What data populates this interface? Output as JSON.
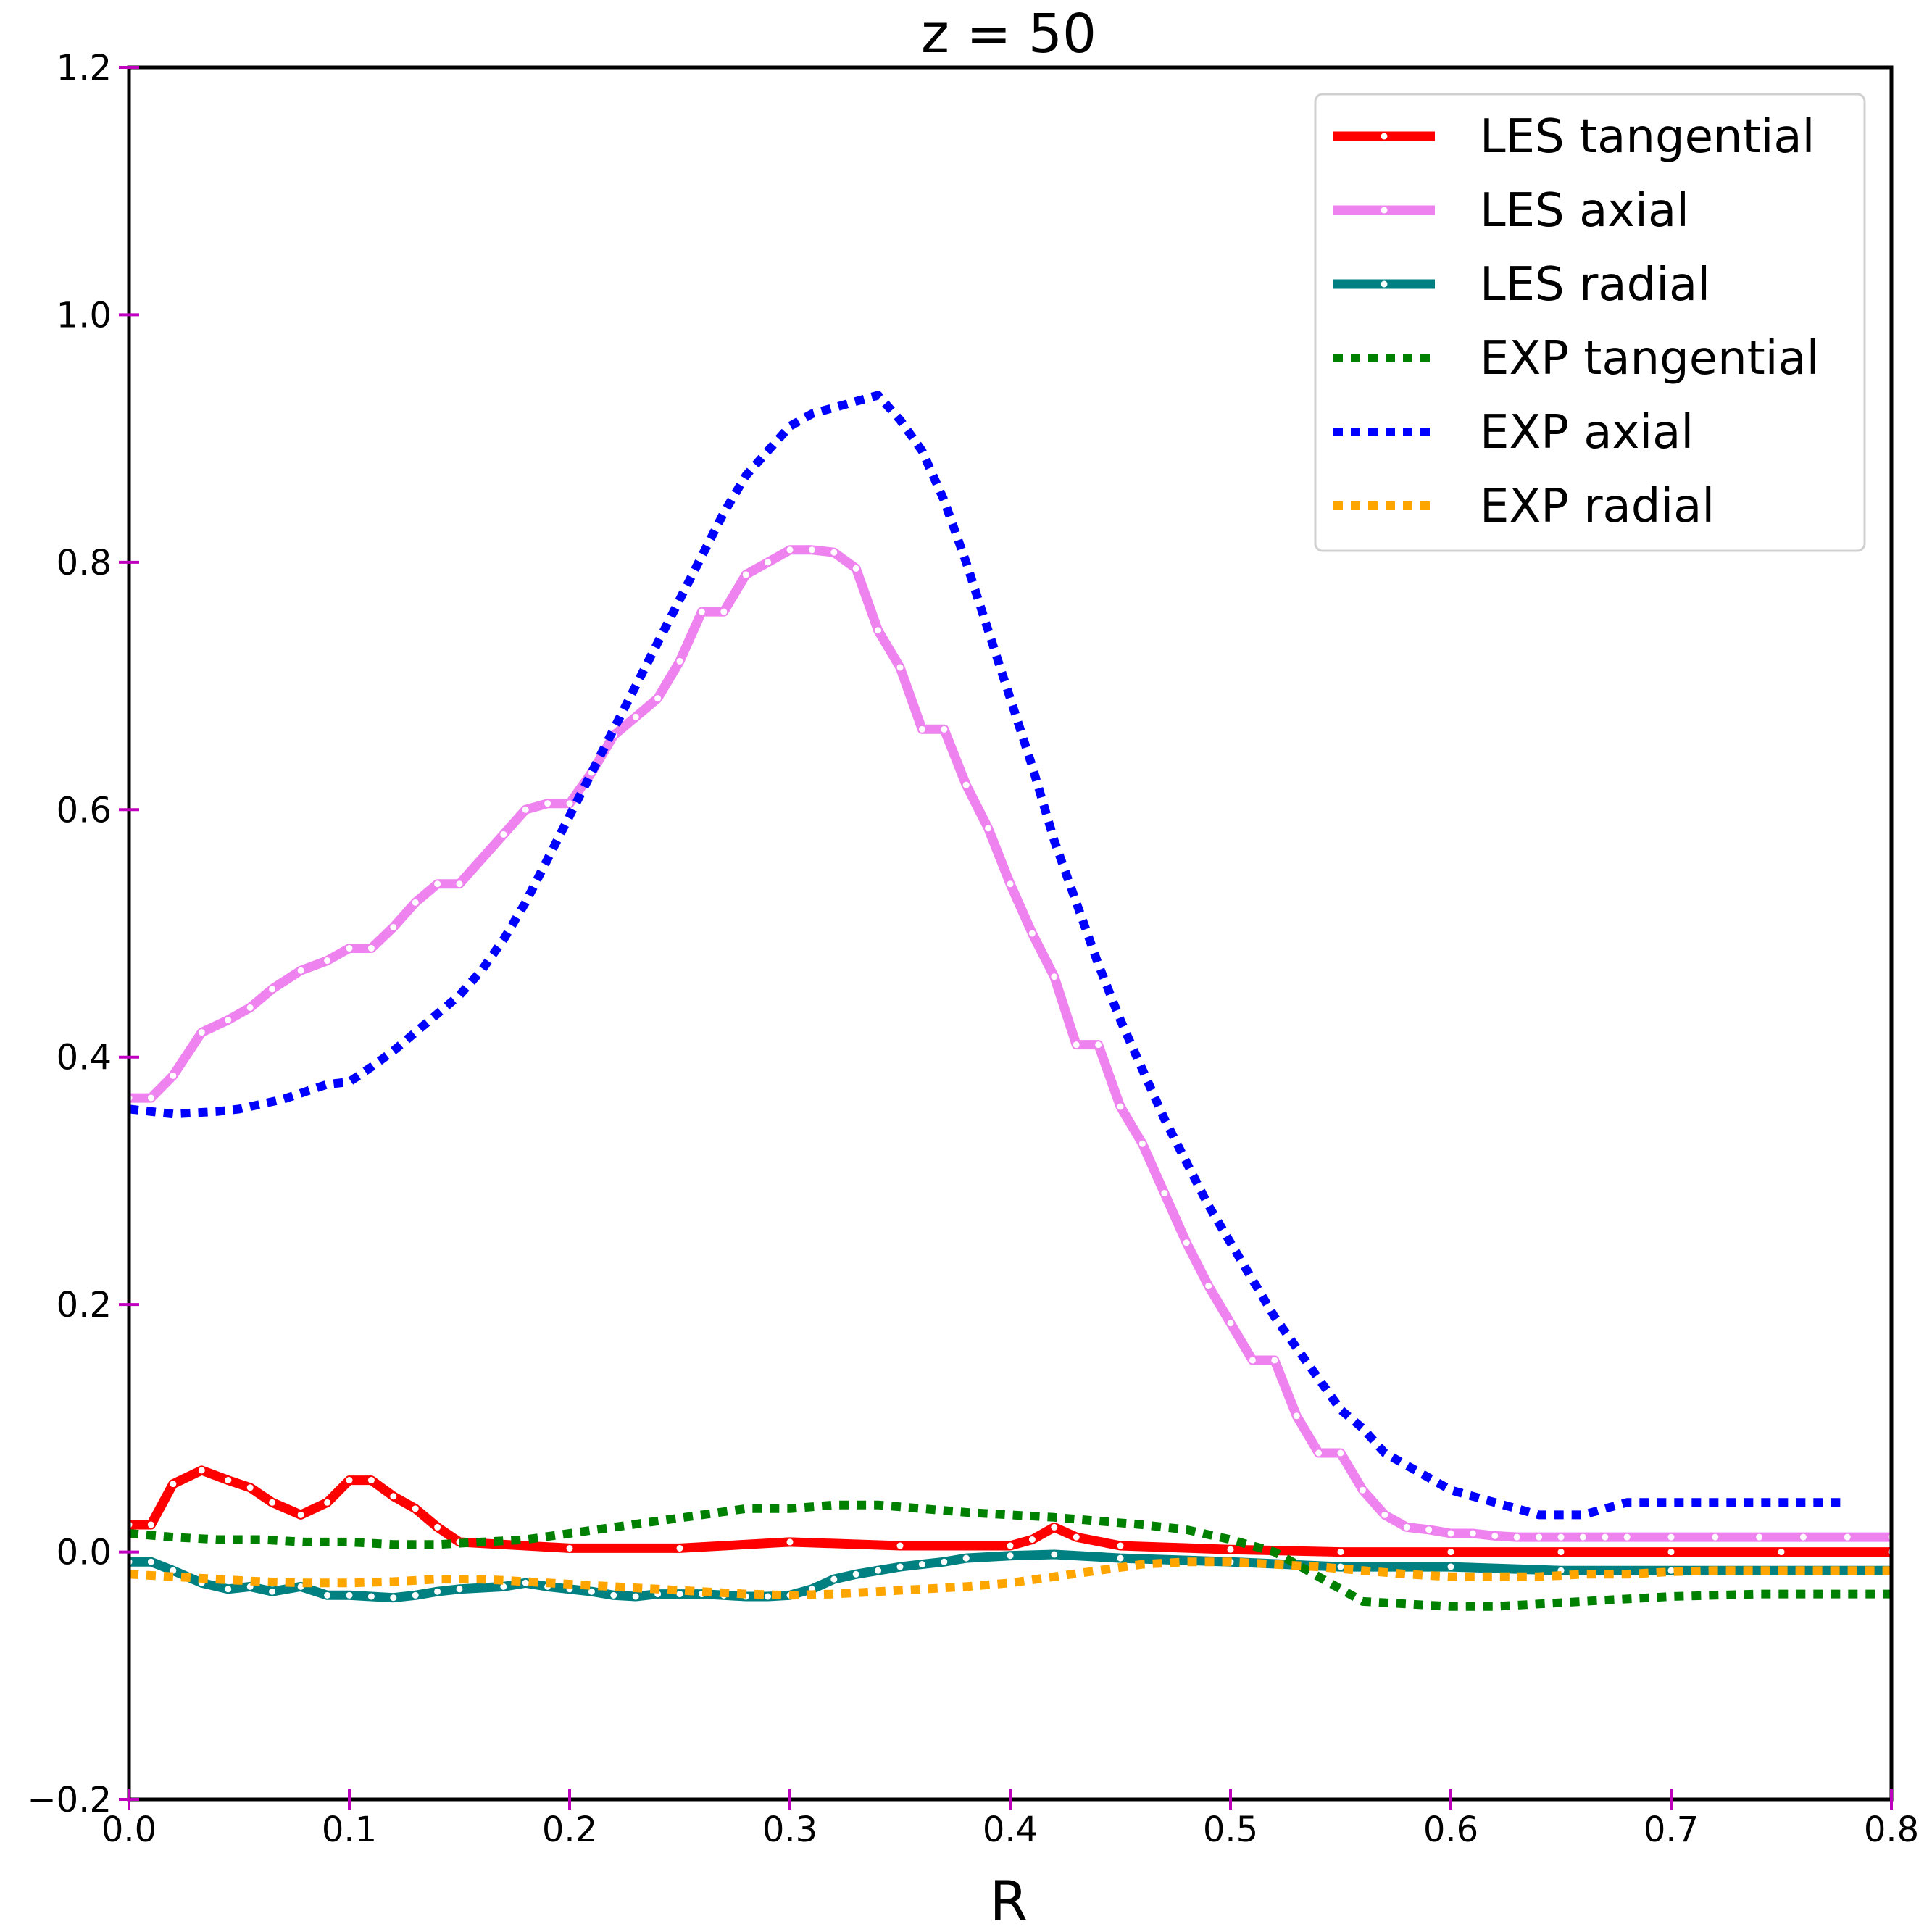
{
  "chart_data": {
    "type": "line",
    "title": "z = 50",
    "xlabel": "R",
    "ylabel": "",
    "xlim": [
      0.0,
      0.8
    ],
    "ylim": [
      -0.2,
      1.2
    ],
    "xticks": [
      0.0,
      0.1,
      0.2,
      0.3,
      0.4,
      0.5,
      0.6,
      0.7,
      0.8
    ],
    "yticks": [
      -0.2,
      0.0,
      0.2,
      0.4,
      0.6,
      0.8,
      1.0,
      1.2
    ],
    "xtick_labels": [
      "0.0",
      "0.1",
      "0.2",
      "0.3",
      "0.4",
      "0.5",
      "0.6",
      "0.7",
      "0.8"
    ],
    "ytick_labels": [
      "−0.2",
      "0.0",
      "0.2",
      "0.4",
      "0.6",
      "0.8",
      "1.0",
      "1.2"
    ],
    "grid": false,
    "legend_position": "top-right",
    "tick_color": "#bf00bf",
    "series": [
      {
        "name": "LES tangential",
        "color": "#ff0000",
        "style": "solid",
        "markers": true,
        "x": [
          0.0,
          0.01,
          0.02,
          0.033,
          0.045,
          0.055,
          0.065,
          0.078,
          0.09,
          0.1,
          0.11,
          0.12,
          0.13,
          0.14,
          0.15,
          0.2,
          0.25,
          0.3,
          0.35,
          0.4,
          0.41,
          0.42,
          0.43,
          0.45,
          0.5,
          0.55,
          0.6,
          0.65,
          0.7,
          0.75,
          0.8
        ],
        "y": [
          0.022,
          0.022,
          0.055,
          0.066,
          0.058,
          0.052,
          0.04,
          0.03,
          0.04,
          0.058,
          0.058,
          0.045,
          0.035,
          0.02,
          0.008,
          0.003,
          0.003,
          0.008,
          0.005,
          0.005,
          0.01,
          0.02,
          0.012,
          0.005,
          0.002,
          0.0,
          0.0,
          0.0,
          0.0,
          0.0,
          0.0
        ]
      },
      {
        "name": "LES axial",
        "color": "#ee82ee",
        "style": "solid",
        "markers": true,
        "x": [
          0.0,
          0.01,
          0.02,
          0.033,
          0.045,
          0.055,
          0.065,
          0.078,
          0.09,
          0.1,
          0.11,
          0.12,
          0.13,
          0.14,
          0.15,
          0.17,
          0.18,
          0.19,
          0.2,
          0.21,
          0.22,
          0.23,
          0.24,
          0.25,
          0.26,
          0.27,
          0.28,
          0.29,
          0.3,
          0.31,
          0.32,
          0.33,
          0.34,
          0.35,
          0.36,
          0.37,
          0.38,
          0.39,
          0.4,
          0.41,
          0.42,
          0.43,
          0.44,
          0.45,
          0.46,
          0.47,
          0.48,
          0.49,
          0.5,
          0.51,
          0.52,
          0.53,
          0.54,
          0.55,
          0.56,
          0.57,
          0.58,
          0.59,
          0.6,
          0.61,
          0.62,
          0.63,
          0.64,
          0.65,
          0.66,
          0.67,
          0.68,
          0.7,
          0.72,
          0.74,
          0.76,
          0.78,
          0.8
        ],
        "y": [
          0.367,
          0.367,
          0.385,
          0.42,
          0.43,
          0.44,
          0.455,
          0.47,
          0.478,
          0.488,
          0.488,
          0.505,
          0.525,
          0.54,
          0.54,
          0.58,
          0.6,
          0.605,
          0.605,
          0.63,
          0.66,
          0.675,
          0.69,
          0.72,
          0.76,
          0.76,
          0.79,
          0.8,
          0.81,
          0.81,
          0.808,
          0.795,
          0.745,
          0.715,
          0.665,
          0.665,
          0.62,
          0.585,
          0.54,
          0.5,
          0.465,
          0.41,
          0.41,
          0.36,
          0.33,
          0.29,
          0.25,
          0.215,
          0.185,
          0.155,
          0.155,
          0.11,
          0.08,
          0.08,
          0.05,
          0.03,
          0.02,
          0.018,
          0.015,
          0.015,
          0.013,
          0.012,
          0.012,
          0.012,
          0.012,
          0.012,
          0.012,
          0.012,
          0.012,
          0.012,
          0.012,
          0.012,
          0.012
        ]
      },
      {
        "name": "LES radial",
        "color": "#008080",
        "style": "solid",
        "markers": true,
        "x": [
          0.0,
          0.01,
          0.02,
          0.033,
          0.045,
          0.055,
          0.065,
          0.078,
          0.09,
          0.1,
          0.11,
          0.12,
          0.13,
          0.14,
          0.15,
          0.17,
          0.18,
          0.19,
          0.2,
          0.21,
          0.22,
          0.23,
          0.24,
          0.25,
          0.26,
          0.27,
          0.28,
          0.29,
          0.3,
          0.31,
          0.32,
          0.33,
          0.34,
          0.35,
          0.36,
          0.37,
          0.38,
          0.4,
          0.42,
          0.45,
          0.5,
          0.55,
          0.6,
          0.65,
          0.7,
          0.75,
          0.8
        ],
        "y": [
          -0.008,
          -0.008,
          -0.015,
          -0.025,
          -0.03,
          -0.028,
          -0.032,
          -0.028,
          -0.035,
          -0.035,
          -0.036,
          -0.037,
          -0.035,
          -0.032,
          -0.03,
          -0.028,
          -0.025,
          -0.028,
          -0.03,
          -0.032,
          -0.035,
          -0.036,
          -0.034,
          -0.034,
          -0.034,
          -0.035,
          -0.036,
          -0.036,
          -0.035,
          -0.03,
          -0.022,
          -0.018,
          -0.015,
          -0.012,
          -0.01,
          -0.008,
          -0.005,
          -0.003,
          -0.002,
          -0.005,
          -0.008,
          -0.012,
          -0.012,
          -0.015,
          -0.015,
          -0.015,
          -0.015
        ]
      },
      {
        "name": "EXP tangential",
        "color": "#008000",
        "style": "dotted",
        "markers": false,
        "x": [
          0.0,
          0.02,
          0.04,
          0.06,
          0.08,
          0.1,
          0.12,
          0.14,
          0.16,
          0.18,
          0.2,
          0.22,
          0.24,
          0.26,
          0.28,
          0.3,
          0.32,
          0.34,
          0.36,
          0.38,
          0.4,
          0.42,
          0.44,
          0.46,
          0.48,
          0.5,
          0.52,
          0.54,
          0.56,
          0.58,
          0.6,
          0.62,
          0.64,
          0.66,
          0.68,
          0.7,
          0.72,
          0.74,
          0.76,
          0.78,
          0.8
        ],
        "y": [
          0.015,
          0.012,
          0.01,
          0.01,
          0.008,
          0.008,
          0.006,
          0.006,
          0.008,
          0.01,
          0.015,
          0.02,
          0.025,
          0.03,
          0.035,
          0.035,
          0.038,
          0.038,
          0.035,
          0.032,
          0.03,
          0.028,
          0.025,
          0.022,
          0.018,
          0.01,
          0.0,
          -0.02,
          -0.04,
          -0.042,
          -0.044,
          -0.044,
          -0.042,
          -0.04,
          -0.038,
          -0.036,
          -0.035,
          -0.034,
          -0.034,
          -0.034,
          -0.034
        ]
      },
      {
        "name": "EXP axial",
        "color": "#0000ff",
        "style": "dotted",
        "markers": false,
        "x": [
          0.0,
          0.01,
          0.02,
          0.03,
          0.04,
          0.05,
          0.06,
          0.07,
          0.08,
          0.09,
          0.1,
          0.11,
          0.12,
          0.13,
          0.14,
          0.15,
          0.16,
          0.17,
          0.18,
          0.19,
          0.2,
          0.21,
          0.22,
          0.23,
          0.24,
          0.25,
          0.26,
          0.27,
          0.28,
          0.29,
          0.3,
          0.31,
          0.32,
          0.33,
          0.34,
          0.35,
          0.36,
          0.37,
          0.38,
          0.39,
          0.4,
          0.41,
          0.42,
          0.43,
          0.44,
          0.45,
          0.46,
          0.47,
          0.48,
          0.49,
          0.5,
          0.51,
          0.52,
          0.53,
          0.54,
          0.55,
          0.56,
          0.57,
          0.58,
          0.59,
          0.6,
          0.61,
          0.62,
          0.63,
          0.64,
          0.65,
          0.66,
          0.67,
          0.68,
          0.7,
          0.72,
          0.74,
          0.76,
          0.78
        ],
        "y": [
          0.358,
          0.356,
          0.354,
          0.355,
          0.356,
          0.358,
          0.362,
          0.366,
          0.372,
          0.378,
          0.38,
          0.392,
          0.405,
          0.42,
          0.435,
          0.45,
          0.47,
          0.495,
          0.525,
          0.56,
          0.595,
          0.63,
          0.665,
          0.7,
          0.735,
          0.77,
          0.805,
          0.84,
          0.87,
          0.89,
          0.91,
          0.92,
          0.925,
          0.93,
          0.935,
          0.915,
          0.89,
          0.85,
          0.8,
          0.745,
          0.69,
          0.635,
          0.575,
          0.525,
          0.475,
          0.43,
          0.39,
          0.35,
          0.315,
          0.28,
          0.25,
          0.22,
          0.19,
          0.165,
          0.14,
          0.115,
          0.1,
          0.08,
          0.07,
          0.06,
          0.05,
          0.045,
          0.04,
          0.035,
          0.03,
          0.03,
          0.03,
          0.035,
          0.04,
          0.04,
          0.04,
          0.04,
          0.04,
          0.04
        ]
      },
      {
        "name": "EXP radial",
        "color": "#ffa500",
        "style": "dotted",
        "markers": false,
        "x": [
          0.0,
          0.02,
          0.04,
          0.06,
          0.08,
          0.1,
          0.12,
          0.14,
          0.16,
          0.18,
          0.2,
          0.22,
          0.24,
          0.26,
          0.28,
          0.3,
          0.32,
          0.34,
          0.36,
          0.38,
          0.4,
          0.42,
          0.44,
          0.46,
          0.48,
          0.5,
          0.52,
          0.54,
          0.56,
          0.58,
          0.6,
          0.62,
          0.64,
          0.66,
          0.68,
          0.7,
          0.72,
          0.74,
          0.76,
          0.78,
          0.8
        ],
        "y": [
          -0.018,
          -0.02,
          -0.022,
          -0.024,
          -0.025,
          -0.025,
          -0.024,
          -0.022,
          -0.022,
          -0.024,
          -0.026,
          -0.028,
          -0.03,
          -0.032,
          -0.034,
          -0.035,
          -0.034,
          -0.032,
          -0.03,
          -0.028,
          -0.025,
          -0.02,
          -0.015,
          -0.01,
          -0.008,
          -0.008,
          -0.01,
          -0.012,
          -0.015,
          -0.018,
          -0.02,
          -0.02,
          -0.02,
          -0.018,
          -0.018,
          -0.016,
          -0.015,
          -0.015,
          -0.015,
          -0.015,
          -0.015
        ]
      }
    ]
  }
}
